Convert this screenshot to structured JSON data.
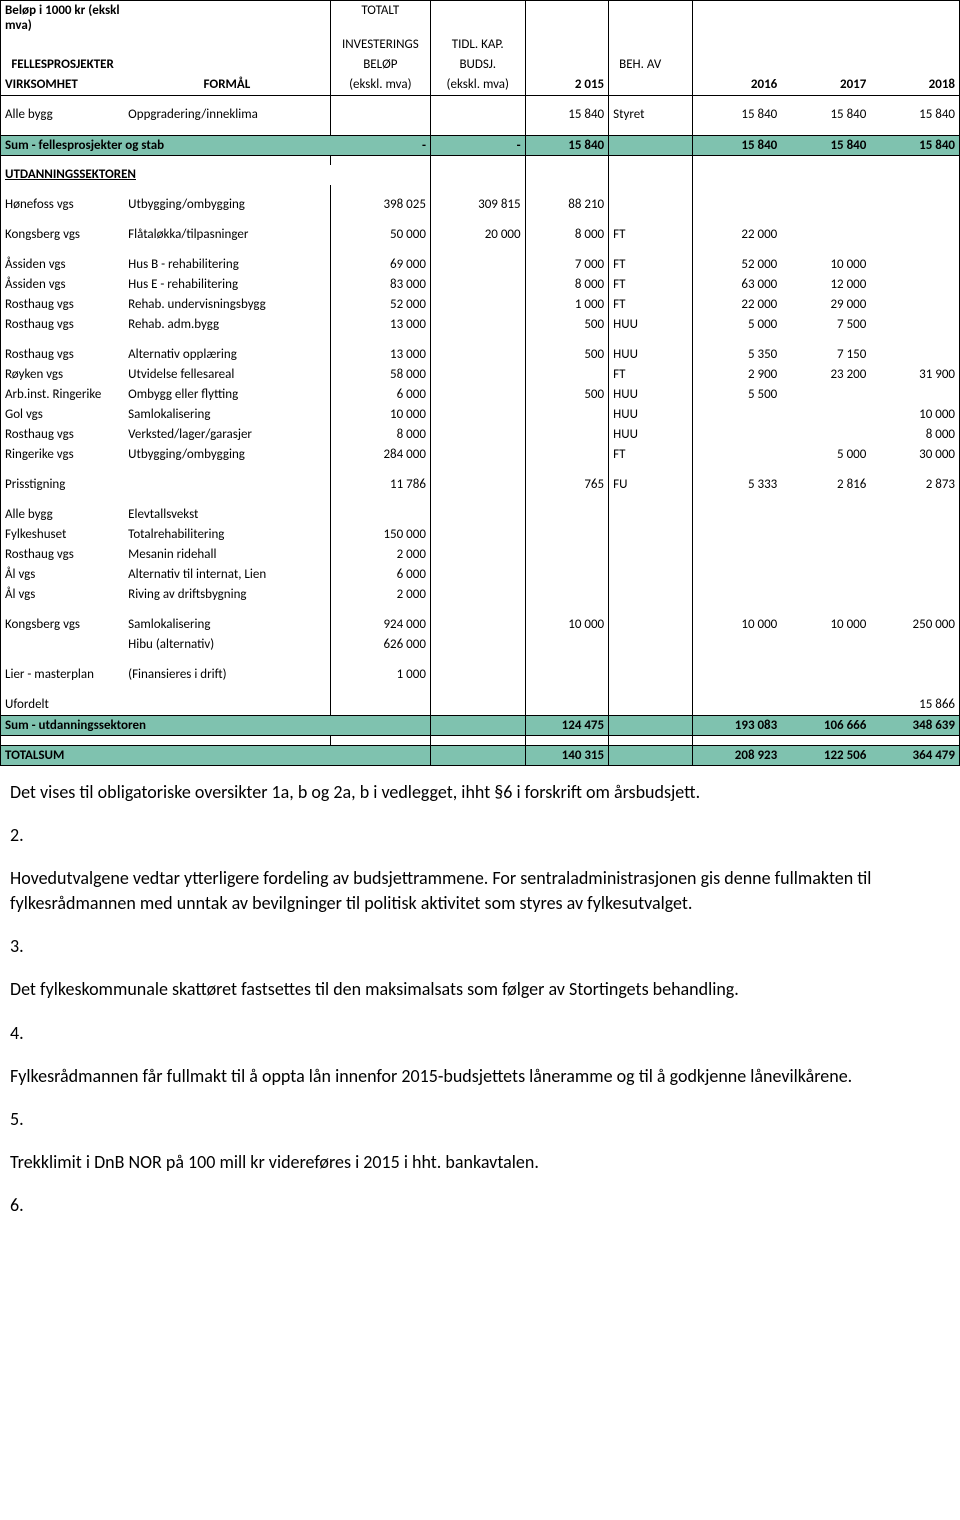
{
  "header": {
    "line1": "Beløp i 1000 kr (ekskl mva)",
    "fellespros": "FELLESPROSJEKTER",
    "virk": "VIRKSOMHET",
    "formal": "FORMÅL",
    "tot1": "TOTALT",
    "tot2": "INVESTERINGS",
    "tot3": "BELØP",
    "tot4": "(ekskl. mva)",
    "tidl1": "TIDL. KAP.",
    "tidl2": "BUDSJ.",
    "tidl3": "(ekskl. mva)",
    "y2015": "2 015",
    "beh": "BEH. AV",
    "y2016": "2016",
    "y2017": "2017",
    "y2018": "2018"
  },
  "r0": {
    "a": "Alle bygg",
    "b": "Oppgradering/inneklima",
    "e": "15 840",
    "f": "Styret",
    "g": "15 840",
    "h": "15 840",
    "i": "15 840"
  },
  "sum1": {
    "label": "Sum - fellesprosjekter og stab",
    "c": "-",
    "d": "-",
    "e": "15 840",
    "g": "15 840",
    "h": "15 840",
    "i": "15 840"
  },
  "utdHdr": "UTDANNINGSSEKTOREN",
  "u1": {
    "a": "Hønefoss vgs",
    "b": "Utbygging/ombygging",
    "c": "398 025",
    "d": "309 815",
    "e": "88 210"
  },
  "u2": {
    "a": "Kongsberg vgs",
    "b": "Flåtaløkka/tilpasninger",
    "c": "50 000",
    "d": "20 000",
    "e": "8 000",
    "f": "FT",
    "g": "22 000"
  },
  "u3": {
    "a": "Åssiden vgs",
    "b": "Hus B - rehabilitering",
    "c": "69 000",
    "e": "7 000",
    "f": "FT",
    "g": "52 000",
    "h": "10 000"
  },
  "u4": {
    "a": "Åssiden vgs",
    "b": "Hus E - rehabilitering",
    "c": "83 000",
    "e": "8 000",
    "f": "FT",
    "g": "63 000",
    "h": "12 000"
  },
  "u5": {
    "a": "Rosthaug vgs",
    "b": "Rehab. undervisningsbygg",
    "c": "52 000",
    "e": "1 000",
    "f": "FT",
    "g": "22 000",
    "h": "29 000"
  },
  "u6": {
    "a": "Rosthaug vgs",
    "b": "Rehab. adm.bygg",
    "c": "13 000",
    "e": "500",
    "f": "HUU",
    "g": "5 000",
    "h": "7 500"
  },
  "u7": {
    "a": "Rosthaug vgs",
    "b": "Alternativ opplæring",
    "c": "13 000",
    "e": "500",
    "f": "HUU",
    "g": "5 350",
    "h": "7 150"
  },
  "u8": {
    "a": "Røyken vgs",
    "b": "Utvidelse fellesareal",
    "c": "58 000",
    "f": "FT",
    "g": "2 900",
    "h": "23 200",
    "i": "31 900"
  },
  "u9": {
    "a": "Arb.inst. Ringerike",
    "b": "Ombygg eller flytting",
    "c": "6 000",
    "e": "500",
    "f": "HUU",
    "g": "5 500"
  },
  "u10": {
    "a": "Gol vgs",
    "b": "Samlokalisering",
    "c": "10 000",
    "f": "HUU",
    "i": "10 000"
  },
  "u11": {
    "a": "Rosthaug vgs",
    "b": "Verksted/lager/garasjer",
    "c": "8 000",
    "f": "HUU",
    "i": "8 000"
  },
  "u12": {
    "a": "Ringerike vgs",
    "b": "Utbygging/ombygging",
    "c": "284 000",
    "f": "FT",
    "h": "5 000",
    "i": "30 000"
  },
  "u13": {
    "a": "Prisstigning",
    "c": "11 786",
    "e": "765",
    "f": "FU",
    "g": "5 333",
    "h": "2 816",
    "i": "2 873"
  },
  "u14": {
    "a": "Alle bygg",
    "b": "Elevtallsvekst"
  },
  "u15": {
    "a": "Fylkeshuset",
    "b": "Totalrehabilitering",
    "c": "150 000"
  },
  "u16": {
    "a": "Rosthaug vgs",
    "b": "Mesanin ridehall",
    "c": "2 000"
  },
  "u17": {
    "a": "Ål vgs",
    "b": "Alternativ til internat, Lien",
    "c": "6 000"
  },
  "u18": {
    "a": "Ål vgs",
    "b": "Riving av driftsbygning",
    "c": "2 000"
  },
  "u19": {
    "a": "Kongsberg vgs",
    "b": "Samlokalisering",
    "c": "924 000",
    "e": "10 000",
    "g": "10 000",
    "h": "10 000",
    "i": "250 000"
  },
  "u20": {
    "b": "Hibu (alternativ)",
    "c": "626 000"
  },
  "u21": {
    "a": "Lier - masterplan",
    "b": "(Finansieres i drift)",
    "c": "1 000"
  },
  "u22": {
    "a": "Ufordelt",
    "i": "15 866"
  },
  "sum2": {
    "label": "Sum - utdanningssektoren",
    "e": "124 475",
    "g": "193 083",
    "h": "106 666",
    "i": "348 639"
  },
  "tot": {
    "label": "TOTALSUM",
    "e": "140 315",
    "g": "208 923",
    "h": "122 506",
    "i": "364 479"
  },
  "txt": {
    "p1": "Det vises til obligatoriske oversikter 1a, b og 2a, b i vedlegget, ihht §6 i forskrift om årsbudsjett.",
    "n2": "2.",
    "p2": "Hovedutvalgene vedtar ytterligere fordeling av budsjettrammene. For sentraladministrasjonen gis denne fullmakten til fylkesrådmannen med unntak av bevilgninger til politisk aktivitet som styres av fylkesutvalget.",
    "n3": "3.",
    "p3": "Det fylkeskommunale skattøret fastsettes til den maksimalsats som følger av Stortingets behandling.",
    "n4": "4.",
    "p4": "Fylkesrådmannen får fullmakt til å oppta lån innenfor 2015-budsjettets låneramme og til å godkjenne lånevilkårene.",
    "n5": "5.",
    "p5": "Trekklimit i DnB NOR på 100 mill kr videreføres i 2015 i hht. bankavtalen.",
    "n6": "6."
  }
}
